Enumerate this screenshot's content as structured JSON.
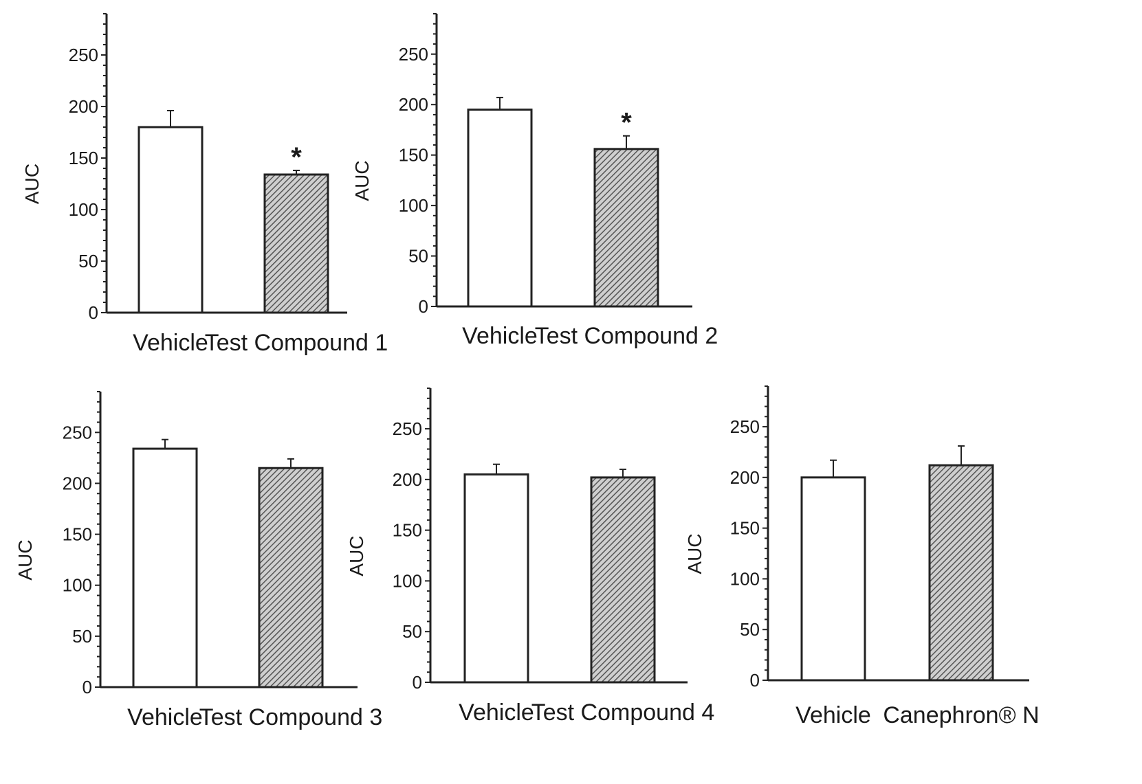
{
  "chart_data": [
    {
      "type": "bar",
      "ylabel": "AUC",
      "ylim": [
        0,
        290
      ],
      "yticks": [
        0,
        50,
        100,
        150,
        200,
        250
      ],
      "categories": [
        "Vehicle",
        "Test Compound 1"
      ],
      "values": [
        180,
        134
      ],
      "errors": [
        16,
        4
      ],
      "significance": [
        "",
        "*"
      ],
      "fills": [
        "white",
        "hatched"
      ]
    },
    {
      "type": "bar",
      "ylabel": "AUC",
      "ylim": [
        0,
        290
      ],
      "yticks": [
        0,
        50,
        100,
        150,
        200,
        250
      ],
      "categories": [
        "Vehicle",
        "Test Compound 2"
      ],
      "values": [
        195,
        156
      ],
      "errors": [
        12,
        13
      ],
      "significance": [
        "",
        "*"
      ],
      "fills": [
        "white",
        "hatched"
      ]
    },
    {
      "type": "bar",
      "ylabel": "AUC",
      "ylim": [
        0,
        290
      ],
      "yticks": [
        0,
        50,
        100,
        150,
        200,
        250
      ],
      "categories": [
        "Vehicle",
        "Test Compound 3"
      ],
      "values": [
        234,
        215
      ],
      "errors": [
        9,
        9
      ],
      "significance": [
        "",
        ""
      ],
      "fills": [
        "white",
        "hatched"
      ]
    },
    {
      "type": "bar",
      "ylabel": "AUC",
      "ylim": [
        0,
        290
      ],
      "yticks": [
        0,
        50,
        100,
        150,
        200,
        250
      ],
      "categories": [
        "Vehicle",
        "Test Compound 4"
      ],
      "values": [
        205,
        202
      ],
      "errors": [
        10,
        8
      ],
      "significance": [
        "",
        ""
      ],
      "fills": [
        "white",
        "hatched"
      ]
    },
    {
      "type": "bar",
      "ylabel": "AUC",
      "ylim": [
        0,
        290
      ],
      "yticks": [
        0,
        50,
        100,
        150,
        200,
        250
      ],
      "categories": [
        "Vehicle",
        "Canephron® N"
      ],
      "values": [
        200,
        212
      ],
      "errors": [
        17,
        19
      ],
      "significance": [
        "",
        ""
      ],
      "fills": [
        "white",
        "hatched"
      ]
    }
  ],
  "colors": {
    "axis": "#222222",
    "bar_outline": "#222222",
    "hatch": "#555555",
    "background": "#ffffff"
  }
}
